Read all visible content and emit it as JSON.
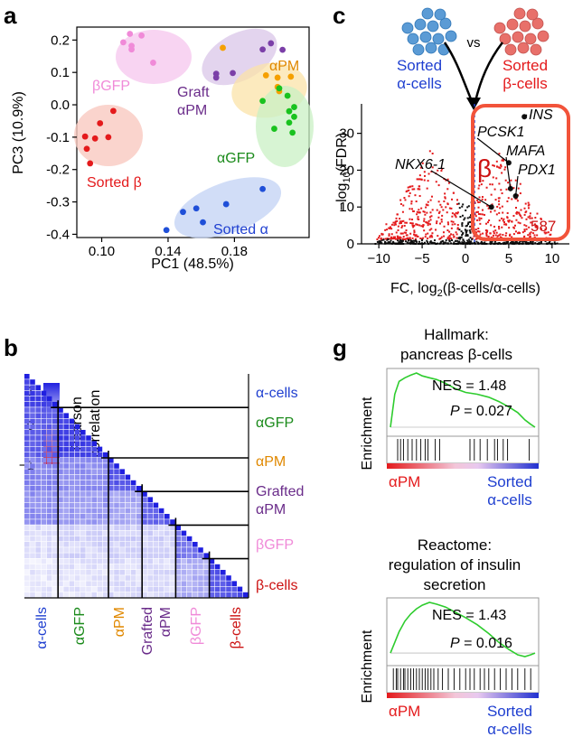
{
  "panels": {
    "a": {
      "letter": "a",
      "chart_data": {
        "type": "scatter",
        "xlabel": "PC1 (48.5%)",
        "ylabel": "PC3 (10.9%)",
        "xlim": [
          0.085,
          0.225
        ],
        "ylim": [
          -0.41,
          0.24
        ],
        "xticks": [
          "0.10",
          "0.14",
          "0.18"
        ],
        "yticks": [
          "0.2",
          "0.1",
          "0.0",
          "-0.1",
          "-0.2",
          "-0.3",
          "-0.4"
        ],
        "xtick_values": [
          0.1,
          0.14,
          0.18
        ],
        "ytick_values": [
          0.2,
          0.1,
          0.0,
          -0.1,
          -0.2,
          -0.3,
          -0.4
        ],
        "series": [
          {
            "name": "βGFP",
            "color": "#f08ad8",
            "values": [
              [
                0.117,
                0.219
              ],
              [
                0.124,
                0.214
              ],
              [
                0.113,
                0.193
              ],
              [
                0.118,
                0.182
              ],
              [
                0.118,
                0.171
              ],
              [
                0.131,
                0.13
              ]
            ]
          },
          {
            "name": "Sorted β",
            "color": "#e41a1c",
            "values": [
              [
                0.107,
                -0.019
              ],
              [
                0.099,
                -0.057
              ],
              [
                0.09,
                -0.098
              ],
              [
                0.096,
                -0.104
              ],
              [
                0.104,
                -0.1
              ],
              [
                0.091,
                -0.136
              ],
              [
                0.093,
                -0.181
              ]
            ]
          },
          {
            "name": "Graft αPM",
            "color": "#7b3fa8",
            "values": [
              [
                0.202,
                0.19
              ],
              [
                0.197,
                0.171
              ],
              [
                0.209,
                0.17
              ],
              [
                0.179,
                0.098
              ],
              [
                0.169,
                0.096
              ],
              [
                0.169,
                0.084
              ]
            ]
          },
          {
            "name": "αPM",
            "color": "#f5a000",
            "values": [
              [
                0.173,
                0.176
              ],
              [
                0.199,
                0.091
              ],
              [
                0.206,
                0.084
              ],
              [
                0.214,
                0.087
              ],
              [
                0.206,
                0.055
              ],
              [
                0.207,
                0.042
              ]
            ]
          },
          {
            "name": "αGFP",
            "color": "#19c21f",
            "values": [
              [
                0.207,
                0.051
              ],
              [
                0.212,
                0.028
              ],
              [
                0.197,
                0.012
              ],
              [
                0.216,
                -0.007
              ],
              [
                0.213,
                -0.02
              ],
              [
                0.216,
                -0.037
              ],
              [
                0.213,
                -0.055
              ],
              [
                0.204,
                -0.074
              ],
              [
                0.215,
                -0.086
              ]
            ]
          },
          {
            "name": "Sorted α",
            "color": "#1f4fd8",
            "values": [
              [
                0.197,
                -0.26
              ],
              [
                0.175,
                -0.307
              ],
              [
                0.157,
                -0.32
              ],
              [
                0.149,
                -0.331
              ],
              [
                0.161,
                -0.363
              ],
              [
                0.139,
                -0.387
              ]
            ]
          }
        ],
        "labels": {
          "betagfp": "βGFP",
          "sorted_beta": "Sorted β",
          "graft": "Graft",
          "graft_apm": "αPM",
          "apm": "αPM",
          "agfp": "αGFP",
          "sorted_alpha": "Sorted α"
        }
      }
    },
    "b": {
      "letter": "b",
      "legend_title_1": "Pearson",
      "legend_title_2": "correlation",
      "legend_ticks": [
        "1",
        "0",
        "−1"
      ],
      "right_labels": [
        "α-cells",
        "αGFP",
        "αPM",
        "Grafted",
        "αPM",
        "βGFP",
        "β-cells"
      ],
      "bottom_labels": [
        "α-cells",
        "αGFP",
        "αPM",
        "Grafted",
        "αPM",
        "βGFP",
        "β-cells"
      ],
      "group_colors": [
        "#1f3fd0",
        "#1a8a1a",
        "#e08800",
        "#6a2c8a",
        "#6a2c8a",
        "#f08ad8",
        "#cc1111"
      ],
      "chart_data": {
        "type": "heatmap",
        "groups": [
          "α-cells",
          "αGFP",
          "αPM",
          "Grafted αPM",
          "βGFP",
          "β-cells"
        ],
        "group_sizes": [
          6,
          9,
          6,
          6,
          6,
          7
        ],
        "block_correlation": [
          [
            0.85,
            0.72,
            0.55,
            0.5,
            0.15,
            0.1
          ],
          [
            0.72,
            0.85,
            0.5,
            0.45,
            0.18,
            0.12
          ],
          [
            0.55,
            0.5,
            0.75,
            0.4,
            0.2,
            0.15
          ],
          [
            0.5,
            0.45,
            0.4,
            0.7,
            0.2,
            0.15
          ],
          [
            0.15,
            0.18,
            0.2,
            0.2,
            0.6,
            0.35
          ],
          [
            0.1,
            0.12,
            0.15,
            0.15,
            0.35,
            0.75
          ]
        ],
        "colorscale": {
          "min": -1,
          "max": 1,
          "low": "#e41a1c",
          "mid": "#ffffff",
          "high": "#2020e0"
        }
      }
    },
    "c": {
      "letter": "c",
      "vs": "vs",
      "left_label_1": "Sorted",
      "left_label_2": "α-cells",
      "right_label_1": "Sorted",
      "right_label_2": "β-cells",
      "beta_symbol": "β",
      "count": "587",
      "gene_labels": [
        "INS",
        "PCSK1",
        "MAFA",
        "PDX1",
        "NKX6-1"
      ],
      "chart_data": {
        "type": "scatter",
        "xlabel": "FC, log2(β-cells/α-cells)",
        "ylabel": "−log10(FDR)",
        "xlim": [
          -12,
          12
        ],
        "ylim": [
          0,
          38
        ],
        "xticks": [
          "−10",
          "−5",
          "0",
          "5",
          "10"
        ],
        "xtick_values": [
          -10,
          -5,
          0,
          5,
          10
        ],
        "yticks": [
          "0",
          "10",
          "20",
          "30"
        ],
        "ytick_values": [
          0,
          10,
          20,
          30
        ],
        "highlighted": [
          {
            "gene": "INS",
            "x": 6.8,
            "y": 34.5
          },
          {
            "gene": "PCSK1",
            "x": 5.0,
            "y": 22.0
          },
          {
            "gene": "MAFA",
            "x": 5.2,
            "y": 15.0
          },
          {
            "gene": "PDX1",
            "x": 5.8,
            "y": 13.0
          },
          {
            "gene": "NKX6-1",
            "x": 3.0,
            "y": 10.0
          }
        ],
        "upregulated_in_beta": 587
      }
    },
    "g": {
      "letter": "g",
      "plot1": {
        "title_1": "Hallmark:",
        "title_2": "pancreas  β-cells",
        "ylabel": "Enrichment",
        "nes": "NES = 1.48",
        "p": "P",
        "p_value": " = 0.027",
        "left_label": "αPM",
        "right_label_1": "Sorted",
        "right_label_2": "α-cells",
        "chart_data": {
          "type": "line",
          "x": [
            0,
            0.03,
            0.06,
            0.1,
            0.14,
            0.18,
            0.22,
            0.27,
            0.32,
            0.38,
            0.45,
            0.52,
            0.6,
            0.68,
            0.75,
            0.82,
            0.88,
            0.93,
            0.97,
            1.0
          ],
          "values": [
            0,
            0.9,
            1.25,
            1.35,
            1.42,
            1.48,
            1.4,
            1.35,
            1.3,
            1.2,
            1.05,
            0.95,
            0.9,
            0.82,
            0.7,
            0.55,
            0.4,
            0.2,
            0.08,
            0
          ]
        },
        "hits": [
          0.05,
          0.07,
          0.09,
          0.12,
          0.15,
          0.18,
          0.21,
          0.24,
          0.26,
          0.31,
          0.34,
          0.55,
          0.58,
          0.62,
          0.67,
          0.72,
          0.74,
          0.78,
          0.81,
          0.96
        ]
      },
      "plot2": {
        "title_1": "Reactome:",
        "title_2": "regulation of insulin",
        "title_3": "secretion",
        "ylabel": "Enrichment",
        "nes": "NES = 1.43",
        "p": "P",
        "p_value": " = 0.016",
        "left_label": "αPM",
        "right_label_1": "Sorted",
        "right_label_2": "α-cells",
        "chart_data": {
          "type": "line",
          "x": [
            0,
            0.03,
            0.06,
            0.1,
            0.14,
            0.18,
            0.22,
            0.27,
            0.32,
            0.38,
            0.45,
            0.52,
            0.6,
            0.68,
            0.75,
            0.82,
            0.88,
            0.93,
            0.97,
            1.0
          ],
          "values": [
            0,
            0.3,
            0.6,
            0.9,
            1.1,
            1.25,
            1.35,
            1.43,
            1.38,
            1.3,
            1.15,
            1.0,
            0.8,
            0.55,
            0.3,
            0.1,
            -0.05,
            -0.1,
            -0.05,
            0
          ]
        },
        "hits": [
          0.02,
          0.04,
          0.05,
          0.07,
          0.09,
          0.1,
          0.12,
          0.14,
          0.16,
          0.18,
          0.2,
          0.22,
          0.24,
          0.26,
          0.28,
          0.3,
          0.33,
          0.36,
          0.4,
          0.44,
          0.48,
          0.52,
          0.55,
          0.58,
          0.62,
          0.65,
          0.68,
          0.72,
          0.76,
          0.8,
          0.84,
          0.88,
          0.93,
          0.97
        ]
      }
    }
  }
}
